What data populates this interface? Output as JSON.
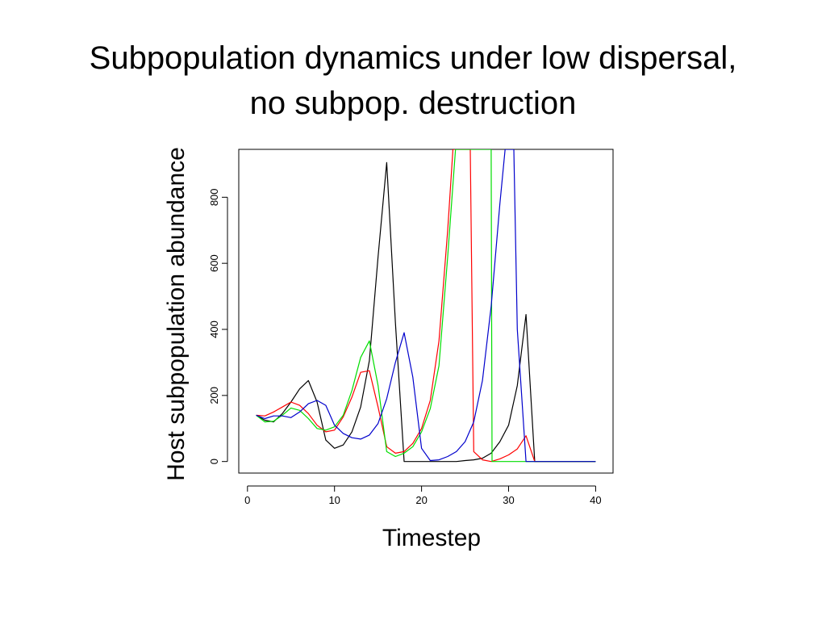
{
  "chart_data": {
    "type": "line",
    "title_line1": "Subpopulation dynamics under low dispersal,",
    "title_line2": "no subpop. destruction",
    "xlabel": "Timestep",
    "ylabel": "Host subpopulation abundance",
    "xlim": [
      -1,
      42
    ],
    "ylim": [
      -35,
      945
    ],
    "xticks": [
      0,
      10,
      20,
      30,
      40
    ],
    "yticks": [
      0,
      200,
      400,
      600,
      800
    ],
    "grid": false,
    "legend": "none",
    "series": [
      {
        "color": "#000000",
        "x": [
          1,
          2,
          3,
          4,
          5,
          6,
          7,
          8,
          9,
          10,
          11,
          12,
          13,
          14,
          15,
          16,
          17,
          18,
          19,
          20,
          21,
          22,
          23,
          24,
          25,
          26,
          27,
          28,
          29,
          30,
          31,
          32,
          33,
          34,
          35,
          36,
          37,
          38,
          39,
          40
        ],
        "y": [
          140,
          125,
          120,
          145,
          180,
          220,
          245,
          180,
          65,
          40,
          50,
          90,
          165,
          305,
          620,
          905,
          420,
          0,
          0,
          0,
          0,
          0,
          0,
          0,
          3,
          5,
          10,
          25,
          60,
          110,
          230,
          445,
          0,
          0,
          0,
          0,
          0,
          0,
          0,
          0
        ]
      },
      {
        "color": "#ff0000",
        "x": [
          1,
          2,
          3,
          4,
          5,
          6,
          7,
          8,
          9,
          10,
          11,
          12,
          13,
          14,
          15,
          16,
          17,
          18,
          19,
          20,
          21,
          22,
          23,
          23.6,
          25.6,
          26,
          27,
          28,
          29,
          30,
          31,
          32,
          33,
          34,
          35,
          36,
          37,
          38,
          39,
          40
        ],
        "y": [
          140,
          138,
          150,
          165,
          180,
          170,
          145,
          110,
          90,
          95,
          135,
          195,
          270,
          275,
          165,
          45,
          25,
          30,
          55,
          100,
          185,
          365,
          700,
          945,
          945,
          30,
          5,
          0,
          8,
          20,
          38,
          78,
          0,
          0,
          0,
          0,
          0,
          0,
          0,
          0
        ]
      },
      {
        "color": "#00dd00",
        "x": [
          1,
          2,
          3,
          4,
          5,
          6,
          7,
          8,
          9,
          10,
          11,
          12,
          13,
          14,
          15,
          16,
          17,
          18,
          19,
          20,
          21,
          22,
          23,
          23.9,
          28.0,
          28.1,
          29,
          30,
          31,
          32,
          33,
          34,
          35,
          36,
          37,
          38,
          39,
          40
        ],
        "y": [
          140,
          120,
          122,
          140,
          162,
          155,
          130,
          100,
          95,
          105,
          140,
          215,
          315,
          365,
          230,
          30,
          15,
          25,
          45,
          90,
          160,
          290,
          620,
          945,
          945,
          0,
          0,
          0,
          0,
          0,
          0,
          0,
          0,
          0,
          0,
          0,
          0,
          0
        ]
      },
      {
        "color": "#0000cc",
        "x": [
          1,
          2,
          3,
          4,
          5,
          6,
          7,
          8,
          9,
          10,
          11,
          12,
          13,
          14,
          15,
          16,
          17,
          18,
          19,
          20,
          21,
          22,
          23,
          24,
          25,
          26,
          27,
          28,
          29,
          29.6,
          30.6,
          31,
          32,
          33,
          34,
          35,
          36,
          37,
          38,
          39,
          40
        ],
        "y": [
          140,
          130,
          138,
          138,
          133,
          150,
          175,
          185,
          170,
          110,
          85,
          72,
          68,
          80,
          115,
          190,
          300,
          390,
          255,
          40,
          3,
          5,
          15,
          30,
          60,
          120,
          245,
          470,
          780,
          945,
          945,
          400,
          0,
          0,
          0,
          0,
          0,
          0,
          0,
          0,
          0
        ]
      }
    ]
  }
}
